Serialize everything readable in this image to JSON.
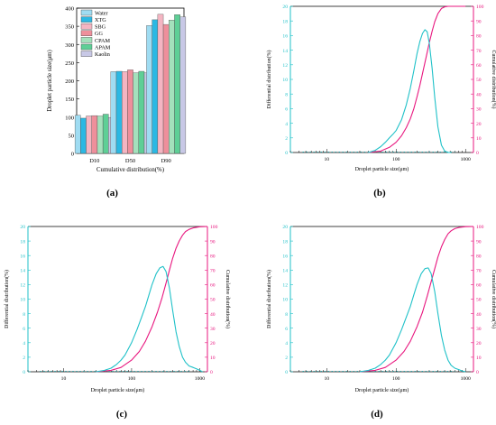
{
  "colors": {
    "differential": "#1fc1c8",
    "cumulative": "#e8177f",
    "bars": [
      "#9fdcf2",
      "#2bb8e3",
      "#f4b5c2",
      "#ee8f9b",
      "#a4e1bc",
      "#5ecf96",
      "#c8c8e6"
    ]
  },
  "chart_data": [
    {
      "type": "bar",
      "panel_label": "(a)",
      "categories": [
        "D10",
        "D50",
        "D90"
      ],
      "xlabel": "Cumulative distribution(%)",
      "ylabel": "Droplet particle size(μm)",
      "ylim": [
        0,
        400
      ],
      "yticks": [
        "0",
        "50",
        "100",
        "150",
        "200",
        "250",
        "300",
        "350",
        "400"
      ],
      "legend_position": "top-left",
      "series": [
        {
          "name": "Water",
          "values": [
            105,
            225,
            352
          ]
        },
        {
          "name": "XTG",
          "values": [
            97,
            226,
            368
          ]
        },
        {
          "name": "SBG",
          "values": [
            103,
            225,
            383
          ]
        },
        {
          "name": "GG",
          "values": [
            104,
            230,
            355
          ]
        },
        {
          "name": "CPAM",
          "values": [
            103,
            222,
            367
          ]
        },
        {
          "name": "APAM",
          "values": [
            108,
            226,
            382
          ]
        },
        {
          "name": "Kaolin",
          "values": [
            99,
            222,
            376
          ]
        }
      ]
    },
    {
      "type": "line",
      "panel_label": "(b)",
      "xlabel": "Droplet particle size(μm)",
      "ylabel": "Differential distribution(%)",
      "y2label": "Cumulative distribution(%)",
      "xscale": "log",
      "xlim": [
        3,
        1300
      ],
      "xticks": [
        "10",
        "100",
        "1000"
      ],
      "ylim": [
        0,
        20
      ],
      "yticks": [
        "0",
        "2",
        "4",
        "6",
        "8",
        "10",
        "12",
        "14",
        "16",
        "18",
        "20"
      ],
      "y2lim": [
        0,
        100
      ],
      "y2ticks": [
        "0",
        "10",
        "20",
        "30",
        "40",
        "50",
        "60",
        "70",
        "80",
        "90",
        "100"
      ],
      "differential": {
        "x": [
          40,
          50,
          60,
          70,
          80,
          90,
          100,
          120,
          140,
          160,
          180,
          200,
          220,
          240,
          260,
          280,
          300,
          330,
          360,
          400,
          450,
          500,
          560,
          620
        ],
        "y": [
          0,
          0.3,
          0.8,
          1.4,
          2.0,
          2.5,
          3.0,
          4.5,
          6.5,
          8.8,
          11.2,
          13.5,
          15.2,
          16.3,
          16.8,
          16.5,
          15.0,
          11.5,
          7.5,
          3.5,
          1.0,
          0.2,
          0.0,
          0.0
        ]
      },
      "cumulative": {
        "x": [
          40,
          60,
          80,
          100,
          120,
          140,
          160,
          180,
          200,
          220,
          240,
          260,
          280,
          300,
          330,
          360,
          400,
          450,
          500,
          560,
          650,
          1000
        ],
        "y": [
          0,
          1,
          3.5,
          7,
          11.5,
          17,
          23,
          30,
          38,
          46,
          54,
          61.5,
          68.5,
          75,
          83,
          89.5,
          95,
          98.5,
          99.6,
          100,
          100,
          100
        ]
      }
    },
    {
      "type": "line",
      "panel_label": "(c)",
      "xlabel": "Droplet particle size(μm)",
      "ylabel": "Differential distribution(%)",
      "y2label": "Cumulative distribution(%)",
      "xscale": "log",
      "xlim": [
        3,
        1300
      ],
      "xticks": [
        "10",
        "100",
        "1000"
      ],
      "ylim": [
        0,
        20
      ],
      "yticks": [
        "0",
        "2",
        "4",
        "6",
        "8",
        "10",
        "12",
        "14",
        "16",
        "18",
        "20"
      ],
      "y2lim": [
        0,
        100
      ],
      "y2ticks": [
        "0",
        "10",
        "20",
        "30",
        "40",
        "50",
        "60",
        "70",
        "80",
        "90",
        "100"
      ],
      "differential": {
        "x": [
          30,
          40,
          50,
          60,
          70,
          80,
          100,
          120,
          140,
          160,
          180,
          200,
          230,
          260,
          290,
          320,
          360,
          400,
          450,
          500,
          560,
          620,
          700,
          800,
          900,
          1000,
          1100
        ],
        "y": [
          0,
          0.2,
          0.5,
          1.0,
          1.6,
          2.3,
          4.0,
          5.8,
          7.5,
          9.0,
          10.6,
          12.0,
          13.5,
          14.3,
          14.5,
          13.8,
          11.5,
          8.5,
          5.5,
          3.5,
          2.0,
          1.3,
          0.8,
          0.6,
          0.4,
          0.2,
          0.0
        ]
      },
      "cumulative": {
        "x": [
          30,
          50,
          70,
          100,
          130,
          160,
          200,
          240,
          280,
          320,
          360,
          400,
          450,
          500,
          560,
          620,
          700,
          800,
          1000,
          1300
        ],
        "y": [
          0,
          1,
          3,
          8,
          14,
          21,
          31,
          41,
          51,
          61,
          70,
          78,
          85,
          90,
          94,
          96.5,
          98,
          99,
          99.8,
          100
        ]
      }
    },
    {
      "type": "line",
      "panel_label": "(d)",
      "xlabel": "Droplet particle size(μm)",
      "ylabel": "Differential distribution(%)",
      "y2label": "Cumulative distribution(%)",
      "xscale": "log",
      "xlim": [
        3,
        1300
      ],
      "xticks": [
        "10",
        "100",
        "1000"
      ],
      "ylim": [
        0,
        20
      ],
      "yticks": [
        "0",
        "2",
        "4",
        "6",
        "8",
        "10",
        "12",
        "14",
        "16",
        "18",
        "20"
      ],
      "y2lim": [
        0,
        100
      ],
      "y2ticks": [
        "0",
        "10",
        "20",
        "30",
        "40",
        "50",
        "60",
        "70",
        "80",
        "90",
        "100"
      ],
      "differential": {
        "x": [
          30,
          40,
          50,
          60,
          70,
          80,
          100,
          120,
          140,
          160,
          180,
          200,
          230,
          260,
          290,
          320,
          360,
          400,
          450,
          500,
          560,
          620,
          700,
          800,
          900,
          1000
        ],
        "y": [
          0,
          0.2,
          0.5,
          1.0,
          1.6,
          2.3,
          4.0,
          5.8,
          7.5,
          9.0,
          10.6,
          12.0,
          13.5,
          14.2,
          14.3,
          13.5,
          11.0,
          8.0,
          5.0,
          3.0,
          1.6,
          0.9,
          0.5,
          0.3,
          0.1,
          0.0
        ]
      },
      "cumulative": {
        "x": [
          30,
          50,
          70,
          100,
          130,
          160,
          200,
          240,
          280,
          320,
          360,
          400,
          450,
          500,
          560,
          620,
          700,
          800,
          1000,
          1300
        ],
        "y": [
          0,
          1,
          3,
          8,
          14,
          21,
          31,
          41,
          52,
          62,
          71,
          79,
          86,
          91,
          95,
          97,
          98.5,
          99.3,
          99.9,
          100
        ]
      }
    }
  ]
}
